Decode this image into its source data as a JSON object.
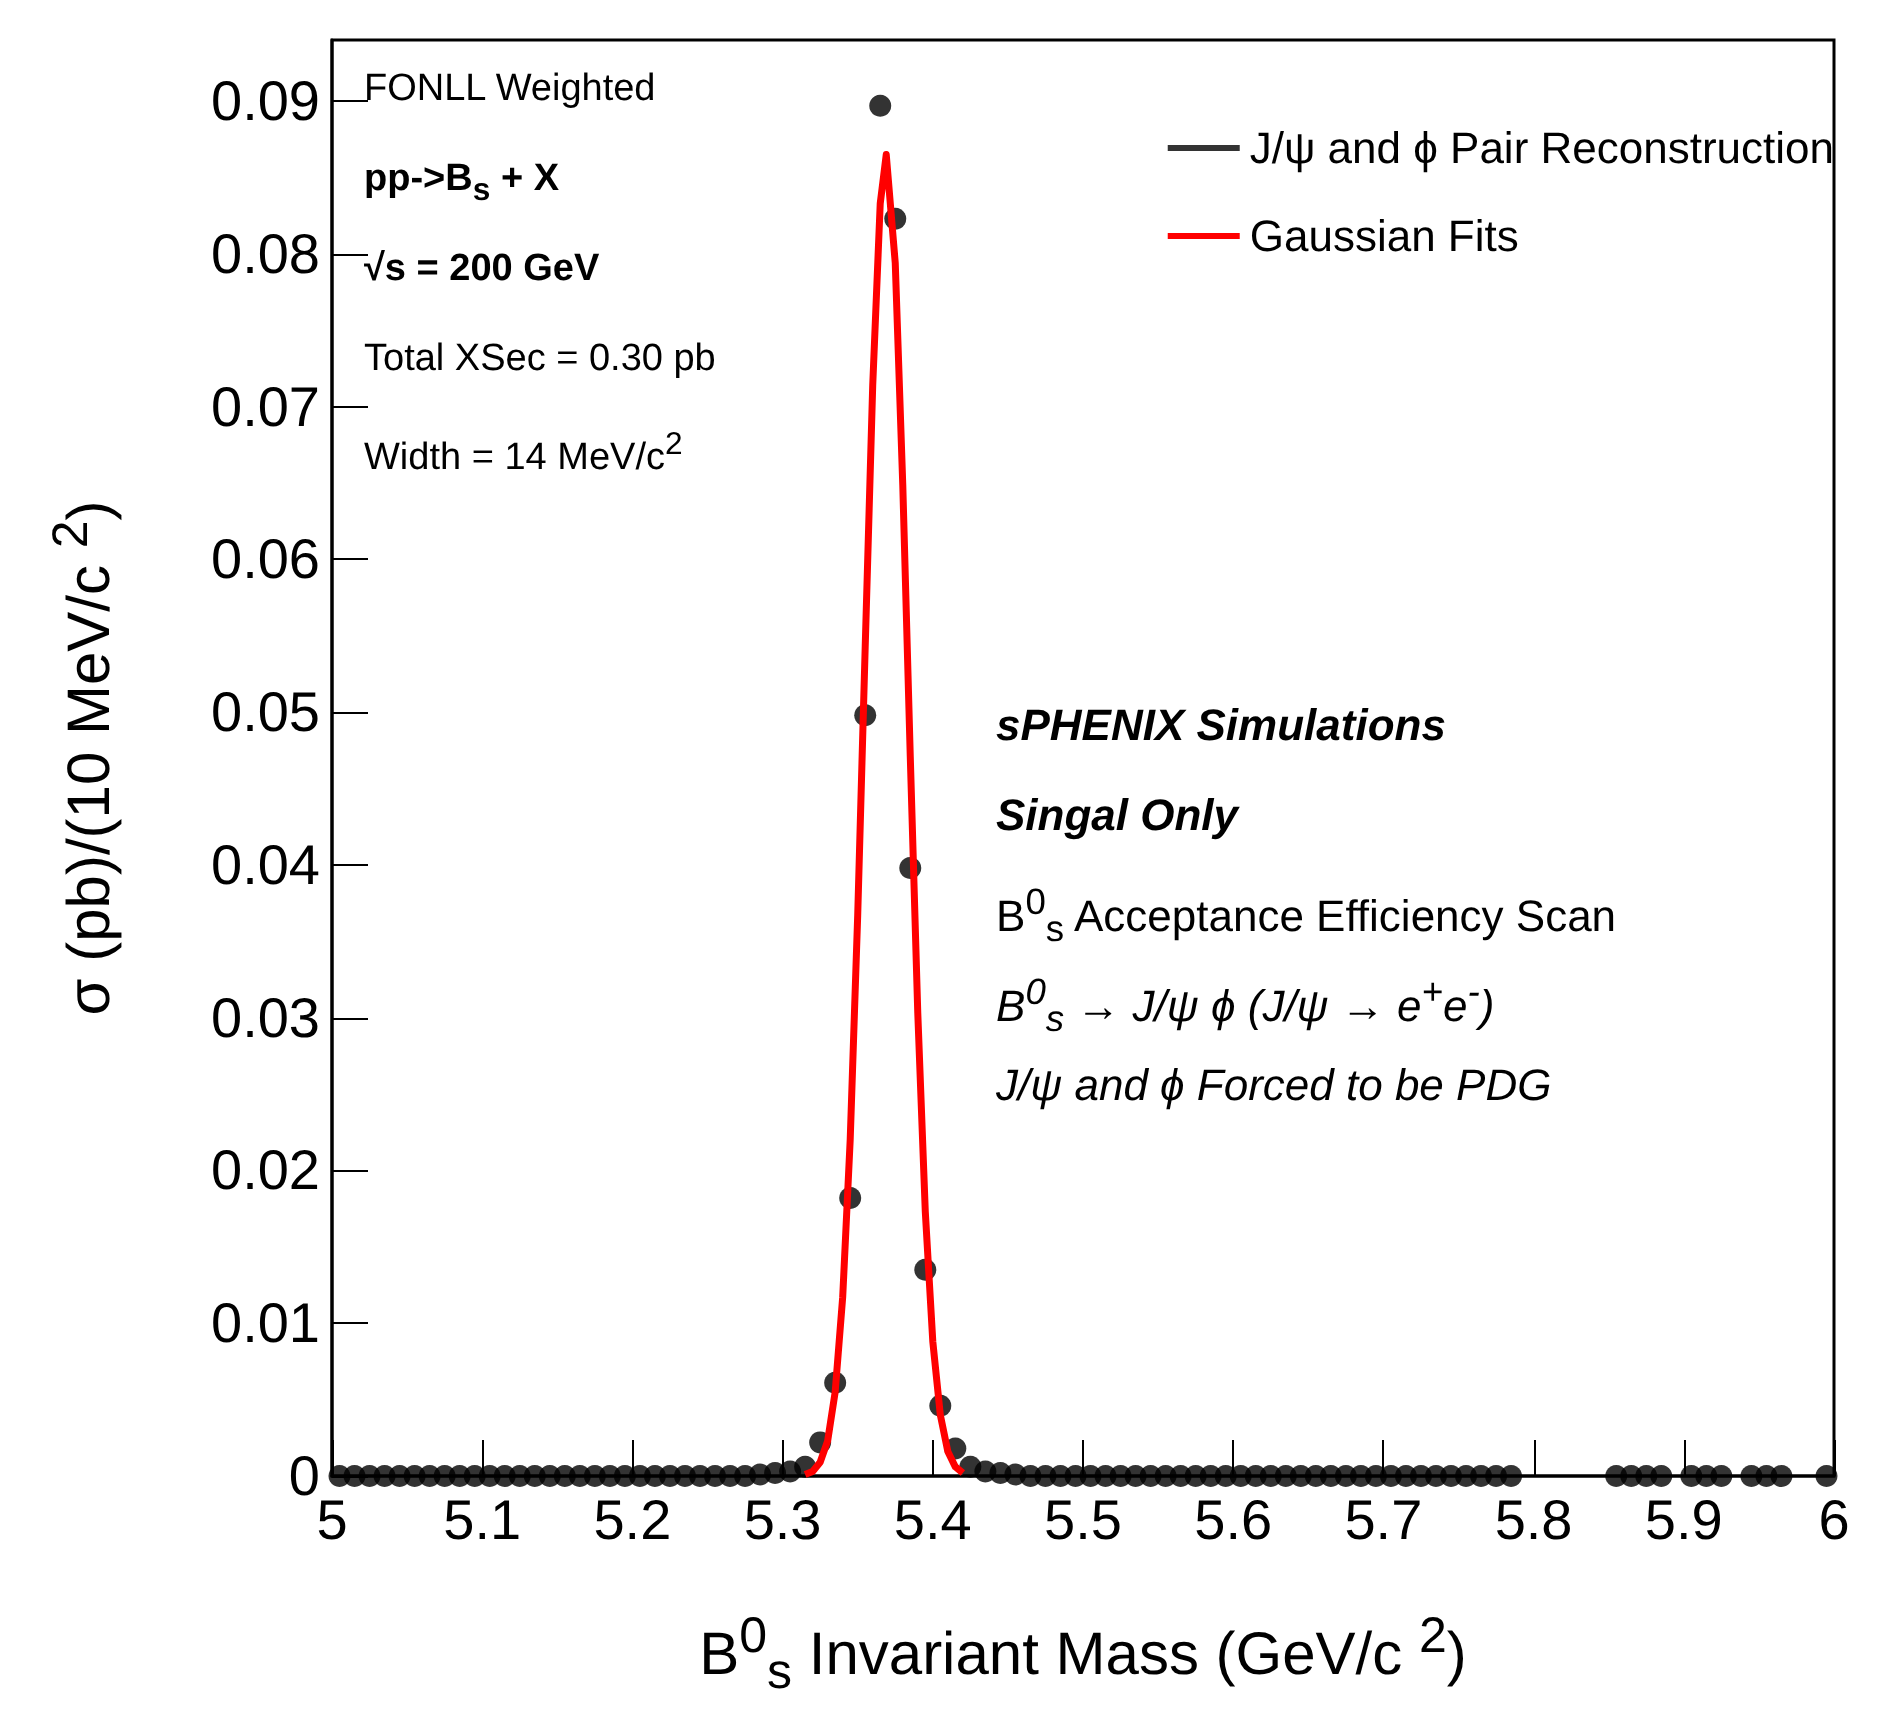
{
  "chart_data": {
    "type": "scatter",
    "xlabel": "B$^{0}$$_{s}$ Invariant Mass (GeV/c $^{2}$)",
    "ylabel": "σ (pb)/(10 MeV/c $^{2}$)",
    "xlim": [
      5,
      6
    ],
    "xticks": [
      5,
      5.1,
      5.2,
      5.3,
      5.4,
      5.5,
      5.6,
      5.7,
      5.8,
      5.9,
      6
    ],
    "ylim": [
      0,
      0.094
    ],
    "yticks": [
      0,
      0.01,
      0.02,
      0.03,
      0.04,
      0.05,
      0.06,
      0.07,
      0.08,
      0.09
    ],
    "grid": false,
    "legend": "top right",
    "annotations": [
      "FONLL Weighted",
      "pp->B$_{s}$ + X",
      "√s = 200 GeV",
      "Total XSec = 0.30 pb",
      "Width = 14 MeV/c$^{2}$",
      "sPHENIX Simulations",
      "Singal Only",
      "B$^{0}$$_{s}$ Acceptance Efficiency Scan",
      "B$^{0}$$_{s}$ → J/ψ ϕ (J/ψ → e$^{+}$e$^{-}$)",
      "J/ψ and ϕ Forced to be PDG"
    ],
    "series": [
      {
        "name": "J/ψ and ϕ Pair Reconstruction",
        "marker": "circle",
        "color": "#000000",
        "x": [
          5.005,
          5.015,
          5.025,
          5.035,
          5.045,
          5.055,
          5.065,
          5.075,
          5.085,
          5.095,
          5.105,
          5.115,
          5.125,
          5.135,
          5.145,
          5.155,
          5.165,
          5.175,
          5.185,
          5.195,
          5.205,
          5.215,
          5.225,
          5.235,
          5.245,
          5.255,
          5.265,
          5.275,
          5.285,
          5.295,
          5.305,
          5.315,
          5.325,
          5.335,
          5.345,
          5.355,
          5.365,
          5.375,
          5.385,
          5.395,
          5.405,
          5.415,
          5.425,
          5.435,
          5.445,
          5.455,
          5.465,
          5.475,
          5.485,
          5.495,
          5.505,
          5.515,
          5.525,
          5.535,
          5.545,
          5.555,
          5.565,
          5.575,
          5.585,
          5.595,
          5.605,
          5.615,
          5.625,
          5.635,
          5.645,
          5.655,
          5.665,
          5.675,
          5.685,
          5.695,
          5.705,
          5.715,
          5.725,
          5.735,
          5.745,
          5.755,
          5.765,
          5.775,
          5.785,
          5.855,
          5.865,
          5.875,
          5.885,
          5.905,
          5.915,
          5.925,
          5.945,
          5.955,
          5.965,
          5.995
        ],
        "values": [
          0,
          0,
          0,
          0,
          0,
          0,
          0,
          0,
          0,
          0,
          0,
          0,
          0,
          0,
          0,
          0,
          0,
          0,
          0,
          0,
          0,
          0,
          0,
          0,
          0,
          0,
          0,
          0,
          0.0001,
          0.0002,
          0.0003,
          0.0006,
          0.0022,
          0.0061,
          0.0182,
          0.0498,
          0.0897,
          0.0823,
          0.0398,
          0.0135,
          0.0046,
          0.0018,
          0.0006,
          0.0003,
          0.0002,
          0.0001,
          0,
          0,
          0,
          0,
          0,
          0,
          0,
          0,
          0,
          0,
          0,
          0,
          0,
          0,
          0,
          0,
          0,
          0,
          0,
          0,
          0,
          0,
          0,
          0,
          0,
          0,
          0,
          0,
          0,
          0,
          0,
          0,
          0,
          0,
          0,
          0,
          0,
          0,
          0,
          0,
          0,
          0,
          0,
          0
        ]
      },
      {
        "name": "Gaussian Fits",
        "type": "line",
        "marker": "none",
        "color": "#ff0000",
        "line_style": "solid",
        "x": [
          5.315,
          5.32,
          5.325,
          5.33,
          5.335,
          5.34,
          5.345,
          5.35,
          5.355,
          5.36,
          5.365,
          5.369,
          5.375,
          5.38,
          5.385,
          5.39,
          5.395,
          5.4,
          5.405,
          5.41,
          5.415,
          5.42
        ],
        "values": [
          0.0001,
          0.0003,
          0.0009,
          0.0023,
          0.0055,
          0.0117,
          0.022,
          0.0367,
          0.0543,
          0.0714,
          0.0833,
          0.0865,
          0.0794,
          0.0649,
          0.0471,
          0.0303,
          0.0173,
          0.0088,
          0.004,
          0.0016,
          0.0006,
          0.0002
        ]
      }
    ]
  }
}
